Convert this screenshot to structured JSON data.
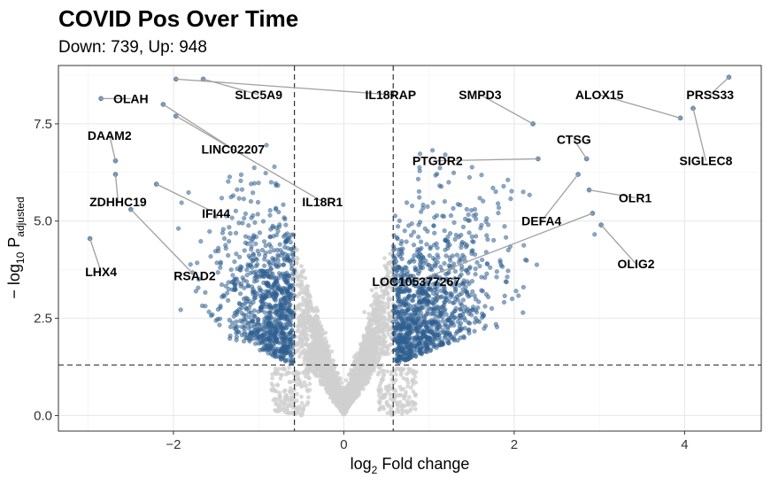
{
  "chart_data": {
    "type": "scatter",
    "title": "COVID Pos Over Time",
    "subtitle": "Down: 739, Up: 948",
    "xlabel": {
      "prefix": "log",
      "sub": "2",
      "suffix": " Fold change"
    },
    "ylabel": {
      "prefix": "− log",
      "sub": "10",
      "mid": " P",
      "sub2": "adjusted"
    },
    "xlim": [
      -3.35,
      4.9
    ],
    "ylim": [
      -0.4,
      9.0
    ],
    "x_ticks": [
      -2,
      0,
      2,
      4
    ],
    "y_ticks": [
      0.0,
      2.5,
      5.0,
      7.5
    ],
    "y_tick_labels": [
      "0.0",
      "2.5",
      "5.0",
      "7.5"
    ],
    "fc_cutoff": 0.58,
    "p_cutoff": 1.3,
    "grid": true,
    "colors": {
      "significant": "#2f5f8f",
      "not_significant": "#d0d0d0",
      "connector": "#a0a0a0",
      "threshold": "#333333"
    },
    "labeled_genes": [
      {
        "name": "OLAH",
        "x": -2.85,
        "y": 8.15,
        "lx": -2.5,
        "ly": 8.15
      },
      {
        "name": "DAAM2",
        "x": -2.68,
        "y": 6.55,
        "lx": -2.75,
        "ly": 7.2
      },
      {
        "name": "ZDHHC19",
        "x": -2.68,
        "y": 6.2,
        "lx": -2.65,
        "ly": 5.5
      },
      {
        "name": "LHX4",
        "x": -2.98,
        "y": 4.55,
        "lx": -2.85,
        "ly": 3.7
      },
      {
        "name": "SLC5A9",
        "x": -1.65,
        "y": 8.65,
        "lx": -1.0,
        "ly": 8.25
      },
      {
        "name": "IL18RAP",
        "x": -1.97,
        "y": 8.65,
        "lx": 0.55,
        "ly": 8.25
      },
      {
        "name": "LINC02207",
        "x": -2.12,
        "y": 8.0,
        "lx": -1.3,
        "ly": 6.85
      },
      {
        "name": "IL18R1",
        "x": -1.97,
        "y": 7.7,
        "lx": -0.25,
        "ly": 5.5
      },
      {
        "name": "IFI44",
        "x": -2.2,
        "y": 5.95,
        "lx": -1.5,
        "ly": 5.2
      },
      {
        "name": "RSAD2",
        "x": -2.5,
        "y": 5.3,
        "lx": -1.75,
        "ly": 3.6
      },
      {
        "name": "SMPD3",
        "x": 2.22,
        "y": 7.5,
        "lx": 1.6,
        "ly": 8.25
      },
      {
        "name": "PTGDR2",
        "x": 2.28,
        "y": 6.6,
        "lx": 1.1,
        "ly": 6.55
      },
      {
        "name": "CTSG",
        "x": 2.85,
        "y": 6.6,
        "lx": 2.7,
        "ly": 7.1
      },
      {
        "name": "DEFA4",
        "x": 2.75,
        "y": 6.2,
        "lx": 2.32,
        "ly": 5.0
      },
      {
        "name": "LOC105377267",
        "x": 2.92,
        "y": 5.2,
        "lx": 0.85,
        "ly": 3.45
      },
      {
        "name": "OLR1",
        "x": 2.88,
        "y": 5.8,
        "lx": 3.42,
        "ly": 5.6
      },
      {
        "name": "OLIG2",
        "x": 3.02,
        "y": 4.9,
        "lx": 3.43,
        "ly": 3.9
      },
      {
        "name": "ALOX15",
        "x": 3.95,
        "y": 7.65,
        "lx": 3.0,
        "ly": 8.25
      },
      {
        "name": "PRSS33",
        "x": 4.52,
        "y": 8.7,
        "lx": 4.3,
        "ly": 8.25
      },
      {
        "name": "SIGLEC8",
        "x": 4.1,
        "y": 7.9,
        "lx": 4.25,
        "ly": 6.55
      }
    ]
  }
}
